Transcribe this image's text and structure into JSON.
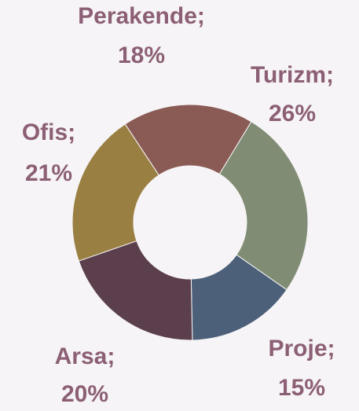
{
  "chart_data": {
    "type": "donut",
    "categories": [
      "Perakende;",
      "Turizm;",
      "Proje;",
      "Arsa;",
      "Ofis;"
    ],
    "values": [
      18,
      26,
      15,
      20,
      21
    ],
    "value_labels": [
      "18%",
      "26%",
      "15%",
      "20%",
      "21%"
    ],
    "colors": [
      "#8a5a55",
      "#808d74",
      "#4c6079",
      "#5b3f4c",
      "#9a7f43"
    ]
  }
}
